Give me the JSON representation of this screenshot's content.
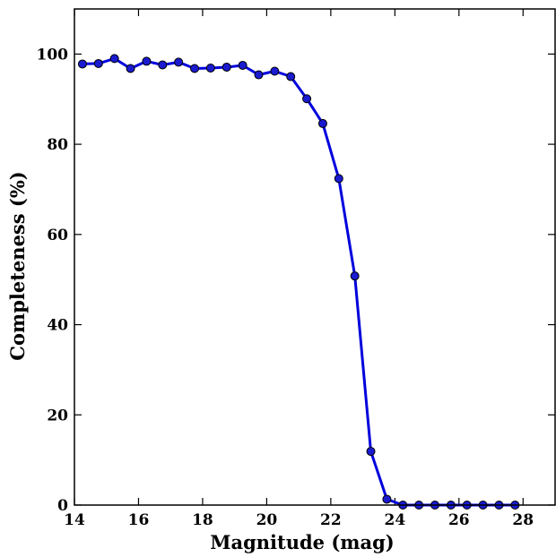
{
  "chart_data": {
    "type": "line",
    "title": "",
    "xlabel": "Magnitude (mag)",
    "ylabel": "Completeness (%)",
    "xlim": [
      14,
      29
    ],
    "ylim": [
      0,
      110
    ],
    "xticks": [
      14,
      16,
      18,
      20,
      22,
      24,
      26,
      28
    ],
    "yticks": [
      0,
      20,
      40,
      60,
      80,
      100
    ],
    "grid": false,
    "legend": "none",
    "series": [
      {
        "color": "#0000dd",
        "marker_color": "#1a1ad0",
        "x": [
          14.25,
          14.75,
          15.25,
          15.75,
          16.25,
          16.75,
          17.25,
          17.75,
          18.25,
          18.75,
          19.25,
          19.75,
          20.25,
          20.75,
          21.25,
          21.75,
          22.25,
          22.75,
          23.25,
          23.75,
          24.25,
          24.75,
          25.25,
          25.75,
          26.25,
          26.75,
          27.25,
          27.75
        ],
        "y": [
          97.8,
          97.9,
          99.0,
          96.8,
          98.4,
          97.6,
          98.2,
          96.8,
          96.9,
          97.1,
          97.5,
          95.4,
          96.2,
          95.0,
          90.1,
          84.6,
          72.4,
          50.8,
          11.9,
          1.3,
          0.0,
          0.0,
          0.0,
          0.0,
          0.0,
          0.0,
          0.0,
          0.0
        ]
      }
    ]
  }
}
